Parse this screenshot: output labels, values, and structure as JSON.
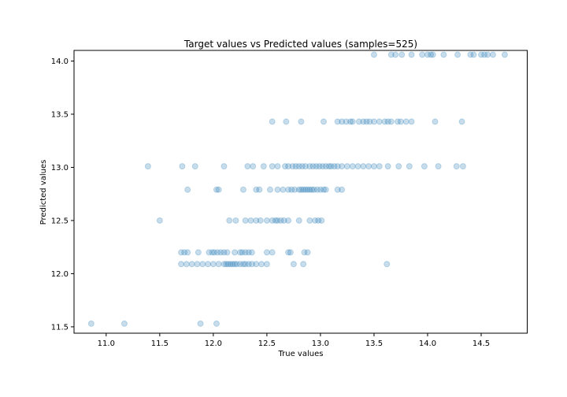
{
  "chart_data": {
    "type": "scatter",
    "title": "Target values vs Predicted values (samples=525)",
    "xlabel": "True values",
    "ylabel": "Predicted values",
    "xlim": [
      10.7,
      14.93
    ],
    "ylim": [
      11.44,
      14.1
    ],
    "xticks": [
      11.0,
      11.5,
      12.0,
      12.5,
      13.0,
      13.5,
      14.0,
      14.5
    ],
    "xtick_labels": [
      "11.0",
      "11.5",
      "12.0",
      "12.5",
      "13.0",
      "13.5",
      "14.0",
      "14.5"
    ],
    "yticks": [
      11.5,
      12.0,
      12.5,
      13.0,
      13.5,
      14.0
    ],
    "ytick_labels": [
      "11.5",
      "12.0",
      "12.5",
      "13.0",
      "13.5",
      "14.0"
    ],
    "grid": false,
    "marker_color": "#1f77b4",
    "marker_alpha": 0.25,
    "series": [
      {
        "points": [
          [
            10.86,
            11.53
          ],
          [
            11.17,
            11.53
          ],
          [
            11.88,
            11.53
          ],
          [
            12.03,
            11.53
          ],
          [
            11.7,
            12.09
          ],
          [
            11.75,
            12.09
          ],
          [
            11.8,
            12.09
          ],
          [
            11.85,
            12.09
          ],
          [
            11.9,
            12.09
          ],
          [
            11.95,
            12.09
          ],
          [
            12.0,
            12.09
          ],
          [
            12.05,
            12.09
          ],
          [
            12.1,
            12.09
          ],
          [
            12.12,
            12.09
          ],
          [
            12.14,
            12.09
          ],
          [
            12.16,
            12.09
          ],
          [
            12.18,
            12.09
          ],
          [
            12.2,
            12.09
          ],
          [
            12.22,
            12.09
          ],
          [
            12.25,
            12.09
          ],
          [
            12.28,
            12.09
          ],
          [
            12.3,
            12.09
          ],
          [
            12.33,
            12.09
          ],
          [
            12.36,
            12.09
          ],
          [
            12.4,
            12.09
          ],
          [
            12.45,
            12.09
          ],
          [
            12.5,
            12.09
          ],
          [
            12.75,
            12.09
          ],
          [
            12.84,
            12.09
          ],
          [
            13.62,
            12.09
          ],
          [
            11.7,
            12.2
          ],
          [
            11.73,
            12.2
          ],
          [
            11.76,
            12.2
          ],
          [
            11.86,
            12.2
          ],
          [
            11.96,
            12.2
          ],
          [
            11.99,
            12.2
          ],
          [
            12.01,
            12.2
          ],
          [
            12.04,
            12.2
          ],
          [
            12.07,
            12.2
          ],
          [
            12.1,
            12.2
          ],
          [
            12.13,
            12.2
          ],
          [
            12.2,
            12.2
          ],
          [
            12.25,
            12.2
          ],
          [
            12.27,
            12.2
          ],
          [
            12.3,
            12.2
          ],
          [
            12.33,
            12.2
          ],
          [
            12.36,
            12.2
          ],
          [
            12.5,
            12.2
          ],
          [
            12.55,
            12.2
          ],
          [
            12.7,
            12.2
          ],
          [
            12.72,
            12.2
          ],
          [
            12.85,
            12.2
          ],
          [
            12.88,
            12.2
          ],
          [
            11.5,
            12.5
          ],
          [
            12.15,
            12.5
          ],
          [
            12.21,
            12.5
          ],
          [
            12.3,
            12.5
          ],
          [
            12.35,
            12.5
          ],
          [
            12.4,
            12.5
          ],
          [
            12.44,
            12.5
          ],
          [
            12.5,
            12.5
          ],
          [
            12.55,
            12.5
          ],
          [
            12.58,
            12.5
          ],
          [
            12.6,
            12.5
          ],
          [
            12.63,
            12.5
          ],
          [
            12.66,
            12.5
          ],
          [
            12.7,
            12.5
          ],
          [
            12.8,
            12.5
          ],
          [
            12.9,
            12.5
          ],
          [
            12.95,
            12.5
          ],
          [
            12.98,
            12.5
          ],
          [
            13.01,
            12.5
          ],
          [
            11.76,
            12.79
          ],
          [
            12.03,
            12.79
          ],
          [
            12.05,
            12.79
          ],
          [
            12.28,
            12.79
          ],
          [
            12.4,
            12.79
          ],
          [
            12.43,
            12.79
          ],
          [
            12.53,
            12.79
          ],
          [
            12.6,
            12.79
          ],
          [
            12.65,
            12.79
          ],
          [
            12.7,
            12.79
          ],
          [
            12.73,
            12.79
          ],
          [
            12.76,
            12.79
          ],
          [
            12.8,
            12.79
          ],
          [
            12.82,
            12.79
          ],
          [
            12.84,
            12.79
          ],
          [
            12.86,
            12.79
          ],
          [
            12.88,
            12.79
          ],
          [
            12.9,
            12.79
          ],
          [
            12.92,
            12.79
          ],
          [
            12.94,
            12.79
          ],
          [
            12.97,
            12.79
          ],
          [
            13.0,
            12.79
          ],
          [
            13.03,
            12.79
          ],
          [
            13.05,
            12.79
          ],
          [
            13.16,
            12.79
          ],
          [
            13.2,
            12.79
          ],
          [
            11.39,
            13.01
          ],
          [
            11.71,
            13.01
          ],
          [
            11.83,
            13.01
          ],
          [
            12.1,
            13.01
          ],
          [
            12.32,
            13.01
          ],
          [
            12.37,
            13.01
          ],
          [
            12.47,
            13.01
          ],
          [
            12.55,
            13.01
          ],
          [
            12.6,
            13.01
          ],
          [
            12.67,
            13.01
          ],
          [
            12.7,
            13.01
          ],
          [
            12.74,
            13.01
          ],
          [
            12.77,
            13.01
          ],
          [
            12.8,
            13.01
          ],
          [
            12.83,
            13.01
          ],
          [
            12.86,
            13.01
          ],
          [
            12.9,
            13.01
          ],
          [
            12.93,
            13.01
          ],
          [
            12.96,
            13.01
          ],
          [
            12.99,
            13.01
          ],
          [
            13.02,
            13.01
          ],
          [
            13.05,
            13.01
          ],
          [
            13.08,
            13.01
          ],
          [
            13.1,
            13.01
          ],
          [
            13.13,
            13.01
          ],
          [
            13.16,
            13.01
          ],
          [
            13.2,
            13.01
          ],
          [
            13.25,
            13.01
          ],
          [
            13.3,
            13.01
          ],
          [
            13.35,
            13.01
          ],
          [
            13.4,
            13.01
          ],
          [
            13.45,
            13.01
          ],
          [
            13.5,
            13.01
          ],
          [
            13.55,
            13.01
          ],
          [
            13.63,
            13.01
          ],
          [
            13.73,
            13.01
          ],
          [
            13.83,
            13.01
          ],
          [
            13.97,
            13.01
          ],
          [
            14.1,
            13.01
          ],
          [
            14.27,
            13.01
          ],
          [
            14.33,
            13.01
          ],
          [
            12.55,
            13.43
          ],
          [
            12.68,
            13.43
          ],
          [
            12.82,
            13.43
          ],
          [
            13.03,
            13.43
          ],
          [
            13.16,
            13.43
          ],
          [
            13.2,
            13.43
          ],
          [
            13.24,
            13.43
          ],
          [
            13.28,
            13.43
          ],
          [
            13.3,
            13.43
          ],
          [
            13.36,
            13.43
          ],
          [
            13.4,
            13.43
          ],
          [
            13.43,
            13.43
          ],
          [
            13.46,
            13.43
          ],
          [
            13.5,
            13.43
          ],
          [
            13.55,
            13.43
          ],
          [
            13.6,
            13.43
          ],
          [
            13.63,
            13.43
          ],
          [
            13.66,
            13.43
          ],
          [
            13.72,
            13.43
          ],
          [
            13.75,
            13.43
          ],
          [
            13.8,
            13.43
          ],
          [
            13.85,
            13.43
          ],
          [
            14.07,
            13.43
          ],
          [
            14.32,
            13.43
          ],
          [
            13.5,
            14.06
          ],
          [
            13.66,
            14.06
          ],
          [
            13.7,
            14.06
          ],
          [
            13.76,
            14.06
          ],
          [
            13.85,
            14.06
          ],
          [
            13.95,
            14.06
          ],
          [
            14.0,
            14.06
          ],
          [
            14.03,
            14.06
          ],
          [
            14.05,
            14.06
          ],
          [
            14.15,
            14.06
          ],
          [
            14.28,
            14.06
          ],
          [
            14.4,
            14.06
          ],
          [
            14.43,
            14.06
          ],
          [
            14.5,
            14.06
          ],
          [
            14.53,
            14.06
          ],
          [
            14.56,
            14.06
          ],
          [
            14.61,
            14.06
          ],
          [
            14.72,
            14.06
          ]
        ]
      }
    ]
  }
}
